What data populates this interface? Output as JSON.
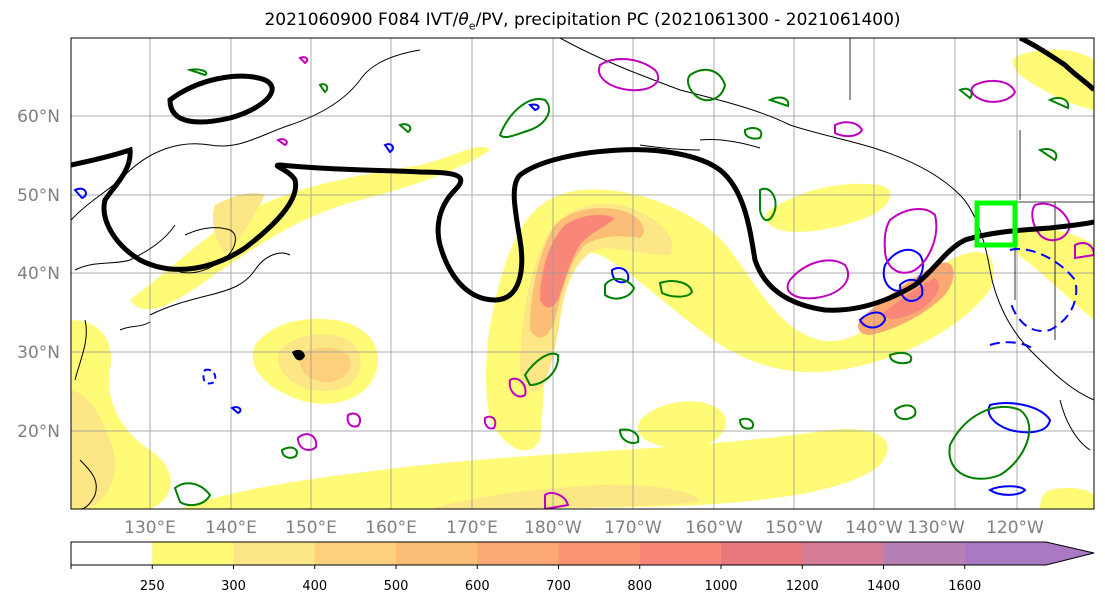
{
  "title": {
    "prefix": "2021060900 F084 IVT/",
    "theta": "θ",
    "sub": "e",
    "suffix": "/PV, precipitation PC (2021061300 - 2021061400)"
  },
  "map": {
    "lat_labels": [
      "60°N",
      "50°N",
      "40°N",
      "30°N",
      "20°N"
    ],
    "lon_labels": [
      "130°E",
      "140°E",
      "150°E",
      "160°E",
      "170°E",
      "180°W",
      "170°W",
      "160°W",
      "150°W",
      "140°W",
      "130°W",
      "120°W"
    ]
  },
  "legend": {
    "ticks": [
      "250",
      "300",
      "400",
      "500",
      "600",
      "700",
      "800",
      "1000",
      "1200",
      "1400",
      "1600"
    ],
    "colors": [
      "#ffffff",
      "#fffb77",
      "#fde685",
      "#fcd07d",
      "#fcbd76",
      "#fca873",
      "#fb9472",
      "#f8877a",
      "#e9787e",
      "#d47c96",
      "#b680b4",
      "#a979c4"
    ]
  },
  "colors": {
    "pv_contour": "#000000",
    "theta_contour": "#008000",
    "precip_contour": "#0000ff",
    "ivt_contour": "#c000c0",
    "highlight_box": "#00ff00"
  }
}
